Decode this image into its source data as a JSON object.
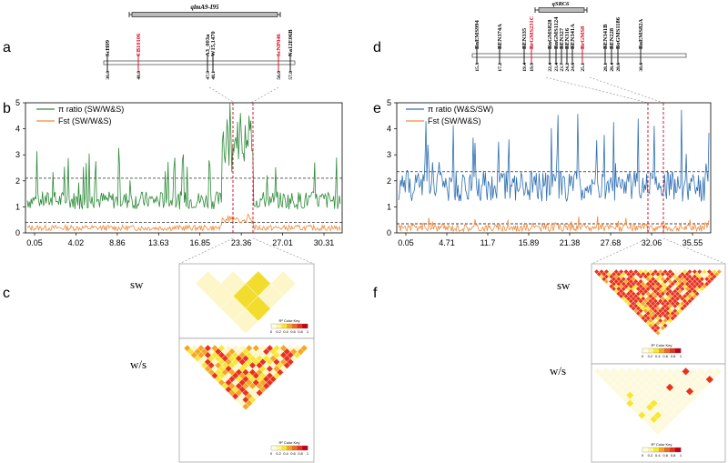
{
  "panels": {
    "a": "a",
    "b": "b",
    "c": "c",
    "d": "d",
    "e": "e",
    "f": "f"
  },
  "colors": {
    "pi_left": "#2e8b3a",
    "pi_right": "#2f6fb3",
    "fst": "#f08a3c",
    "highlight": "#d0021b",
    "ld_high": "#e8321e",
    "ld_mid": "#f5a623",
    "ld_low": "#f7e733"
  },
  "map_left": {
    "qtl": "qlmA9-I95",
    "markers": [
      {
        "name": "ScH09",
        "pos": "36.0",
        "highlight": false
      },
      {
        "name": "CB10106",
        "pos": "40.0",
        "highlight": true
      },
      {
        "name": "A3_003a",
        "pos": "47.9",
        "highlight": false
      },
      {
        "name": "W15,1470",
        "pos": "48.1",
        "highlight": false
      },
      {
        "name": "ScNP046",
        "pos": "56.0",
        "highlight": true
      },
      {
        "name": "Na12E06B",
        "pos": "57.0",
        "highlight": false
      }
    ]
  },
  "map_right": {
    "qtl": "qSRC6",
    "markers": [
      {
        "name": "BnEMS994",
        "pos": "15.3",
        "highlight": false
      },
      {
        "name": "BEN374A",
        "pos": "17.2",
        "highlight": false
      },
      {
        "name": "BEN335",
        "pos": "19.4",
        "highlight": false
      },
      {
        "name": "BrGMS231C",
        "pos": "19.9",
        "highlight": true
      },
      {
        "name": "BnGMS828",
        "pos": "22.4",
        "highlight": false
      },
      {
        "name": "BnGMS1124",
        "pos": "23.4",
        "highlight": false
      },
      {
        "name": "BEN327",
        "pos": "23.7",
        "highlight": false
      },
      {
        "name": "BEN316",
        "pos": "24.2",
        "highlight": false
      },
      {
        "name": "BEN341A",
        "pos": "24.6",
        "highlight": false
      },
      {
        "name": "BrGMS8",
        "pos": "25.1",
        "highlight": true
      },
      {
        "name": "BEN341B",
        "pos": "28.1",
        "highlight": false
      },
      {
        "name": "BEN228",
        "pos": "28.4",
        "highlight": false
      },
      {
        "name": "BoGMS1186",
        "pos": "28.6",
        "highlight": false
      },
      {
        "name": "BnEMS82A",
        "pos": "30.6",
        "highlight": false
      }
    ]
  },
  "chart_data": [
    {
      "type": "line",
      "series": [
        {
          "name": "π ratio (SW/W&S)",
          "color": "#2e8b3a"
        },
        {
          "name": "Fst (SW/W&S)",
          "color": "#f08a3c"
        }
      ],
      "x_tick_labels": [
        "0.05",
        "4.02",
        "8.86",
        "13.63",
        "16.85",
        "23.36",
        "27.01",
        "30.31"
      ],
      "ylim": [
        0,
        5
      ],
      "y_ticks": [
        "0",
        "1",
        "2",
        "3",
        "4",
        "5"
      ],
      "threshold_pi": 2.1,
      "threshold_fst": 0.4,
      "highlight_window": [
        23.36,
        26.8
      ]
    },
    {
      "type": "line",
      "series": [
        {
          "name": "π ratio (W&S/SW)",
          "color": "#2f6fb3"
        },
        {
          "name": "Fst (SW/W&S)",
          "color": "#f08a3c"
        }
      ],
      "x_tick_labels": [
        "0.05",
        "4.71",
        "11.7",
        "15.89",
        "21.38",
        "27.68",
        "32.06",
        "35.55"
      ],
      "ylim": [
        0,
        5
      ],
      "y_ticks": [
        "0",
        "1",
        "2",
        "3",
        "4",
        "5"
      ],
      "threshold_pi": 2.35,
      "threshold_fst": 0.35,
      "highlight_window": [
        31.0,
        32.6
      ]
    }
  ],
  "ld": {
    "left_top": "sw",
    "left_bottom": "w/s",
    "right_top": "sw",
    "right_bottom": "w/s",
    "key_label": "R² Color Key",
    "key_ticks": [
      "0",
      "0.2",
      "0.4",
      "0.6",
      "0.8",
      "1"
    ]
  }
}
